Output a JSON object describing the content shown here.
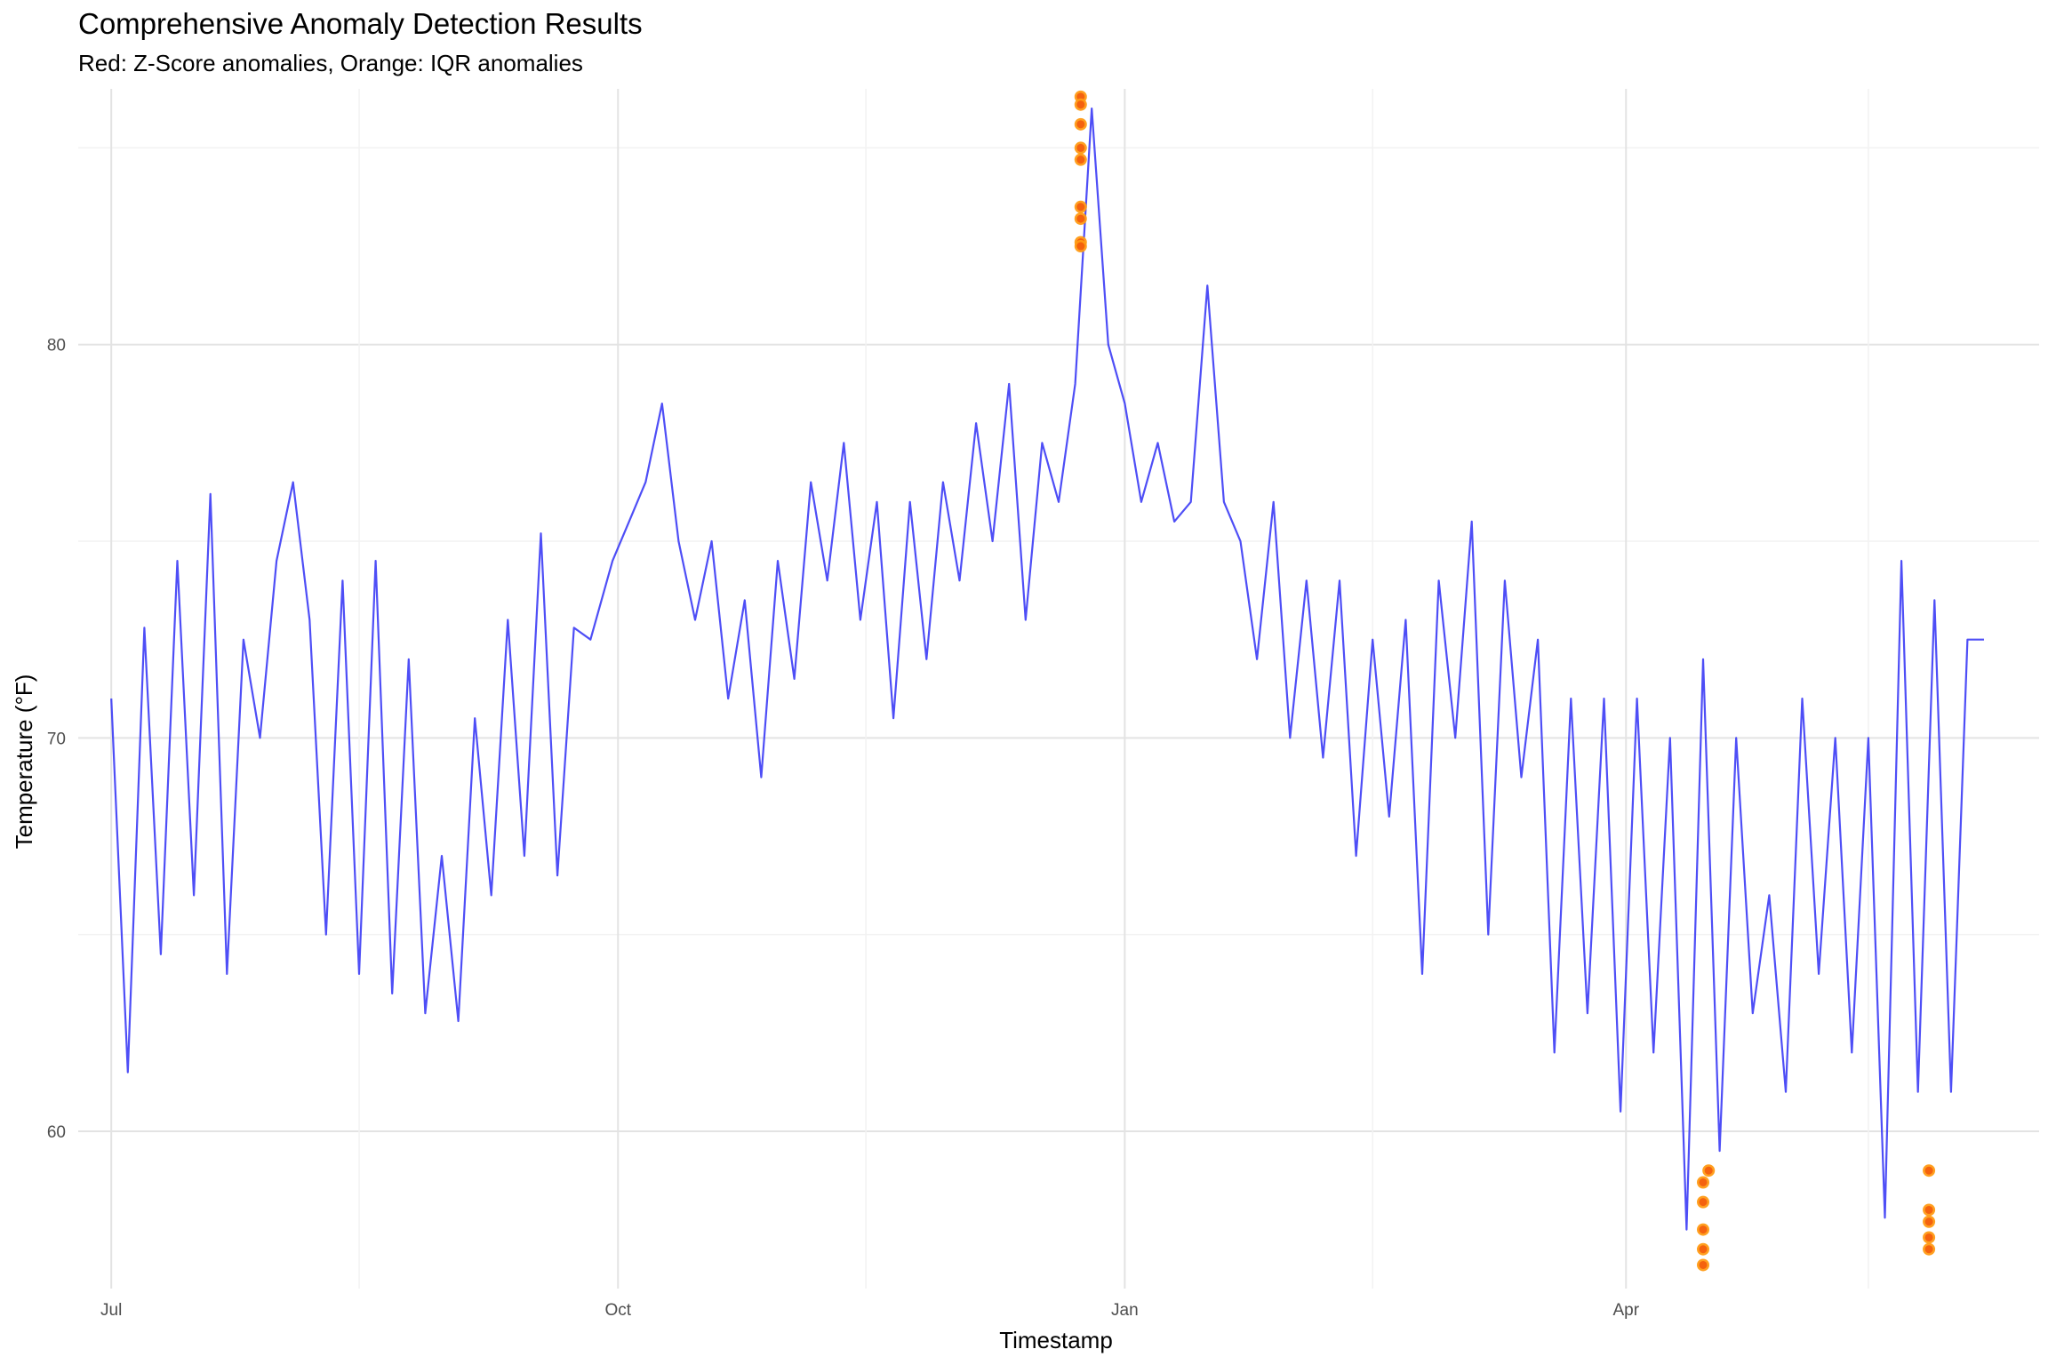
{
  "chart_data": {
    "type": "line",
    "title": "Comprehensive Anomaly Detection Results",
    "subtitle": "Red: Z-Score anomalies, Orange: IQR anomalies",
    "xlabel": "Timestamp",
    "ylabel": "Temperature (°F)",
    "x_ticks": [
      "Jul",
      "Oct",
      "Jan",
      "Apr"
    ],
    "y_ticks": [
      60,
      70,
      80
    ],
    "xlim": [
      "2023-06-25",
      "2024-06-15"
    ],
    "ylim": [
      56,
      86.5
    ],
    "grid": true,
    "colors": {
      "line": "#3b3bf5",
      "zscore_anomaly": "#f04e0a",
      "iqr_anomaly": "#ff9b14",
      "grid_major": "#e3e3e3",
      "grid_minor": "#f2f2f2"
    },
    "series": [
      {
        "type": "line",
        "x": [
          "2023-07-01",
          "2023-07-04",
          "2023-07-07",
          "2023-07-10",
          "2023-07-13",
          "2023-07-16",
          "2023-07-19",
          "2023-07-22",
          "2023-07-25",
          "2023-07-28",
          "2023-07-31",
          "2023-08-03",
          "2023-08-06",
          "2023-08-09",
          "2023-08-12",
          "2023-08-15",
          "2023-08-18",
          "2023-08-21",
          "2023-08-24",
          "2023-08-27",
          "2023-08-30",
          "2023-09-02",
          "2023-09-05",
          "2023-09-08",
          "2023-09-11",
          "2023-09-14",
          "2023-09-17",
          "2023-09-20",
          "2023-09-23",
          "2023-09-26",
          "2023-09-30",
          "2023-10-03",
          "2023-10-06",
          "2023-10-09",
          "2023-10-12",
          "2023-10-15",
          "2023-10-18",
          "2023-10-21",
          "2023-10-24",
          "2023-10-27",
          "2023-10-30",
          "2023-11-02",
          "2023-11-05",
          "2023-11-08",
          "2023-11-11",
          "2023-11-14",
          "2023-11-17",
          "2023-11-20",
          "2023-11-23",
          "2023-11-26",
          "2023-11-29",
          "2023-12-02",
          "2023-12-05",
          "2023-12-08",
          "2023-12-11",
          "2023-12-14",
          "2023-12-17",
          "2023-12-20",
          "2023-12-23",
          "2023-12-26",
          "2023-12-29",
          "2024-01-01",
          "2024-01-04",
          "2024-01-07",
          "2024-01-10",
          "2024-01-13",
          "2024-01-16",
          "2024-01-19",
          "2024-01-22",
          "2024-01-25",
          "2024-01-28",
          "2024-01-31",
          "2024-02-03",
          "2024-02-06",
          "2024-02-09",
          "2024-02-12",
          "2024-02-15",
          "2024-02-18",
          "2024-02-21",
          "2024-02-24",
          "2024-02-27",
          "2024-03-01",
          "2024-03-04",
          "2024-03-07",
          "2024-03-10",
          "2024-03-13",
          "2024-03-16",
          "2024-03-19",
          "2024-03-22",
          "2024-03-25",
          "2024-03-28",
          "2024-03-31",
          "2024-04-03",
          "2024-04-06",
          "2024-04-09",
          "2024-04-12",
          "2024-04-15",
          "2024-04-18",
          "2024-04-21",
          "2024-04-24",
          "2024-04-27",
          "2024-04-30",
          "2024-05-03",
          "2024-05-06",
          "2024-05-09",
          "2024-05-12",
          "2024-05-15",
          "2024-05-18",
          "2024-05-21",
          "2024-05-24",
          "2024-05-27",
          "2024-05-30",
          "2024-06-02",
          "2024-06-05"
        ],
        "y": [
          71.0,
          61.5,
          72.8,
          64.5,
          74.5,
          66.0,
          76.2,
          64.0,
          72.5,
          70.0,
          74.5,
          76.5,
          73.0,
          65.0,
          74.0,
          64.0,
          74.5,
          63.5,
          72.0,
          63.0,
          67.0,
          62.8,
          70.5,
          66.0,
          73.0,
          67.0,
          75.2,
          66.5,
          72.8,
          72.5,
          74.5,
          75.5,
          76.5,
          78.5,
          75.0,
          73.0,
          75.0,
          71.0,
          73.5,
          69.0,
          74.5,
          71.5,
          76.5,
          74.0,
          77.5,
          73.0,
          76.0,
          70.5,
          76.0,
          72.0,
          76.5,
          74.0,
          78.0,
          75.0,
          79.0,
          73.0,
          77.5,
          76.0,
          79.0,
          86.0,
          80.0,
          78.5,
          76.0,
          77.5,
          75.5,
          76.0,
          81.5,
          76.0,
          75.0,
          72.0,
          76.0,
          70.0,
          74.0,
          69.5,
          74.0,
          67.0,
          72.5,
          68.0,
          73.0,
          64.0,
          74.0,
          70.0,
          75.5,
          65.0,
          74.0,
          69.0,
          72.5,
          62.0,
          71.0,
          63.0,
          71.0,
          60.5,
          71.0,
          62.0,
          70.0,
          57.5,
          72.0,
          59.5,
          70.0,
          63.0,
          66.0,
          61.0,
          71.0,
          64.0,
          70.0,
          62.0,
          70.0,
          57.8,
          74.5,
          61.0,
          73.5,
          61.0,
          72.5,
          72.5
        ]
      },
      {
        "type": "scatter",
        "name": "",
        "x": [
          "2023-12-24",
          "2023-12-24",
          "2023-12-24",
          "2023-12-24",
          "2023-12-24",
          "2023-12-24",
          "2023-12-24",
          "2023-12-24",
          "2023-12-24",
          "2024-04-15",
          "2024-04-15",
          "2024-04-15",
          "2024-04-15",
          "2024-04-15",
          "2024-04-16",
          "2024-05-26",
          "2024-05-26",
          "2024-05-26",
          "2024-05-26",
          "2024-05-26"
        ],
        "y": [
          86.3,
          86.1,
          85.6,
          85.0,
          84.7,
          83.5,
          83.2,
          82.6,
          82.5,
          58.7,
          58.2,
          57.5,
          57.0,
          56.6,
          59.0,
          59.0,
          58.0,
          57.7,
          57.3,
          57.0
        ]
      }
    ]
  }
}
